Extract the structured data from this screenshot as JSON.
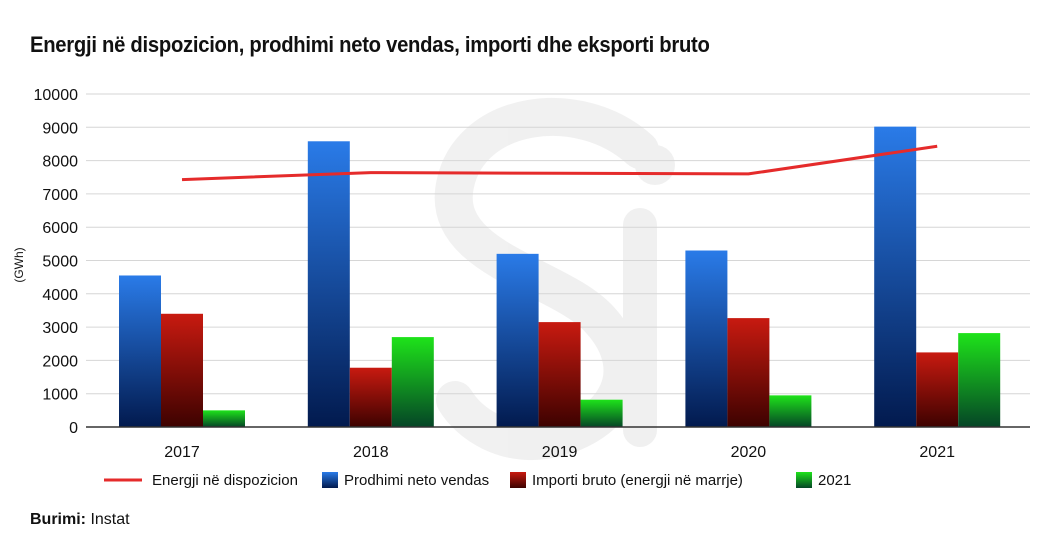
{
  "chart_data": {
    "type": "bar",
    "title": "Energji në dispozicion, prodhimi neto vendas, importi dhe eksporti bruto",
    "ylabel": "(GWh)",
    "xlabel": "",
    "ylim": [
      0,
      10000
    ],
    "yticks": [
      0,
      1000,
      2000,
      3000,
      4000,
      5000,
      6000,
      7000,
      8000,
      9000,
      10000
    ],
    "grid": true,
    "categories": [
      "2017",
      "2018",
      "2019",
      "2020",
      "2021"
    ],
    "series": [
      {
        "name": "Prodhimi neto vendas",
        "kind": "bar",
        "colors": [
          "#2a7be8",
          "#021a4e"
        ],
        "values": [
          4550,
          8580,
          5200,
          5300,
          9020
        ]
      },
      {
        "name": "Importi bruto (energji në marrje)",
        "kind": "bar",
        "colors": [
          "#c81a10",
          "#3d0200"
        ],
        "values": [
          3400,
          1780,
          3150,
          3270,
          2240
        ]
      },
      {
        "name": "2021",
        "kind": "bar",
        "colors": [
          "#1ee31a",
          "#054526"
        ],
        "values": [
          500,
          2700,
          820,
          950,
          2820
        ]
      },
      {
        "name": "Energji në dispozicion",
        "kind": "line",
        "color": "#e52b2b",
        "values": [
          7430,
          7640,
          7620,
          7600,
          8430
        ]
      }
    ],
    "legend_order": [
      "Energji në dispozicion",
      "Prodhimi neto vendas",
      "Importi bruto (energji në marrje)",
      "2021"
    ],
    "legend_position": "bottom"
  },
  "source": {
    "label": "Burimi:",
    "value": "Instat"
  }
}
